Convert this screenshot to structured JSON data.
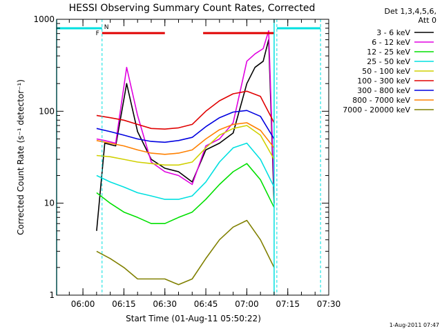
{
  "chart_data": {
    "type": "line",
    "title": "HESSI Observing Summary Count Rates, Corrected",
    "xlabel": "Start Time (01-Aug-11 05:50:22)",
    "ylabel": "Corrected Count Rate (s⁻¹ detector⁻¹)",
    "yscale": "log",
    "ylim": [
      1,
      1000
    ],
    "xlim": [
      "05:50:22",
      "07:30:00"
    ],
    "x_ticks": [
      "06:00",
      "06:15",
      "06:30",
      "06:45",
      "07:00",
      "07:15",
      "07:30"
    ],
    "y_ticks": [
      "1",
      "10",
      "100",
      "1000"
    ],
    "grid": false,
    "legend_header": [
      "Det 1,3,4,5,6,",
      "Att 0"
    ],
    "legend_placement": "outside-right",
    "timestamp": "1-Aug-2011 07:47",
    "flags": {
      "F_label": "F",
      "N_label": "N",
      "flare_intervals": [
        [
          "06:07",
          "06:30"
        ],
        [
          "06:44",
          "07:10"
        ]
      ],
      "night_intervals": [
        [
          "05:50:22",
          "06:07"
        ],
        [
          "07:11",
          "07:27"
        ]
      ],
      "dashed_markers": [
        "06:07",
        "07:11",
        "07:27"
      ],
      "solid_markers": [
        "05:50:22",
        "07:10"
      ]
    },
    "series": [
      {
        "name": "3 - 6 keV",
        "color": "#000000",
        "x": [
          "06:05",
          "06:08",
          "06:12",
          "06:16",
          "06:20",
          "06:25",
          "06:30",
          "06:35",
          "06:40",
          "06:45",
          "06:50",
          "06:55",
          "07:00",
          "07:03",
          "07:06",
          "07:08",
          "07:10"
        ],
        "y": [
          5,
          45,
          42,
          200,
          60,
          30,
          24,
          22,
          17,
          38,
          45,
          58,
          200,
          300,
          350,
          600,
          10
        ]
      },
      {
        "name": "6 - 12 keV",
        "color": "#e000e0",
        "x": [
          "06:05",
          "06:08",
          "06:12",
          "06:16",
          "06:20",
          "06:25",
          "06:30",
          "06:35",
          "06:40",
          "06:45",
          "06:50",
          "06:55",
          "07:00",
          "07:03",
          "07:06",
          "07:08",
          "07:10"
        ],
        "y": [
          50,
          48,
          45,
          300,
          90,
          28,
          22,
          20,
          16,
          42,
          50,
          75,
          350,
          420,
          480,
          750,
          13
        ]
      },
      {
        "name": "12 - 25 keV",
        "color": "#00e000",
        "x": [
          "06:05",
          "06:10",
          "06:15",
          "06:20",
          "06:25",
          "06:30",
          "06:35",
          "06:40",
          "06:45",
          "06:50",
          "06:55",
          "07:00",
          "07:05",
          "07:10"
        ],
        "y": [
          13,
          10,
          8,
          7,
          6,
          6,
          7,
          8,
          11,
          16,
          22,
          27,
          18,
          9
        ]
      },
      {
        "name": "25 - 50 keV",
        "color": "#00e0e0",
        "x": [
          "06:05",
          "06:10",
          "06:15",
          "06:20",
          "06:25",
          "06:30",
          "06:35",
          "06:40",
          "06:45",
          "06:50",
          "06:55",
          "07:00",
          "07:05",
          "07:10"
        ],
        "y": [
          20,
          17,
          15,
          13,
          12,
          11,
          11,
          12,
          17,
          28,
          40,
          45,
          30,
          15
        ]
      },
      {
        "name": "50 - 100 keV",
        "color": "#d0d000",
        "x": [
          "06:05",
          "06:10",
          "06:15",
          "06:20",
          "06:25",
          "06:30",
          "06:35",
          "06:40",
          "06:45",
          "06:50",
          "06:55",
          "07:00",
          "07:05",
          "07:10"
        ],
        "y": [
          33,
          32,
          30,
          28,
          27,
          26,
          26,
          28,
          40,
          55,
          65,
          70,
          55,
          30
        ]
      },
      {
        "name": "100 - 300 keV",
        "color": "#e00000",
        "x": [
          "06:05",
          "06:10",
          "06:15",
          "06:20",
          "06:25",
          "06:30",
          "06:35",
          "06:40",
          "06:45",
          "06:50",
          "06:55",
          "07:00",
          "07:05",
          "07:10"
        ],
        "y": [
          90,
          85,
          80,
          72,
          65,
          64,
          66,
          72,
          100,
          130,
          155,
          165,
          145,
          75
        ]
      },
      {
        "name": "300 - 800 keV",
        "color": "#0000e0",
        "x": [
          "06:05",
          "06:10",
          "06:15",
          "06:20",
          "06:25",
          "06:30",
          "06:35",
          "06:40",
          "06:45",
          "06:50",
          "06:55",
          "07:00",
          "07:05",
          "07:10"
        ],
        "y": [
          65,
          60,
          55,
          50,
          47,
          46,
          48,
          52,
          68,
          85,
          98,
          102,
          88,
          50
        ]
      },
      {
        "name": "800 - 7000 keV",
        "color": "#ff8000",
        "x": [
          "06:05",
          "06:10",
          "06:15",
          "06:20",
          "06:25",
          "06:30",
          "06:35",
          "06:40",
          "06:45",
          "06:50",
          "06:55",
          "07:00",
          "07:05",
          "07:10"
        ],
        "y": [
          48,
          45,
          42,
          38,
          35,
          34,
          35,
          38,
          50,
          63,
          72,
          75,
          62,
          40
        ]
      },
      {
        "name": "7000 - 20000 keV",
        "color": "#808000",
        "x": [
          "06:05",
          "06:10",
          "06:15",
          "06:20",
          "06:25",
          "06:30",
          "06:35",
          "06:40",
          "06:45",
          "06:50",
          "06:55",
          "07:00",
          "07:05",
          "07:10"
        ],
        "y": [
          3,
          2.5,
          2,
          1.5,
          1.5,
          1.5,
          1.3,
          1.5,
          2.5,
          4,
          5.5,
          6.5,
          4,
          2
        ]
      }
    ]
  }
}
